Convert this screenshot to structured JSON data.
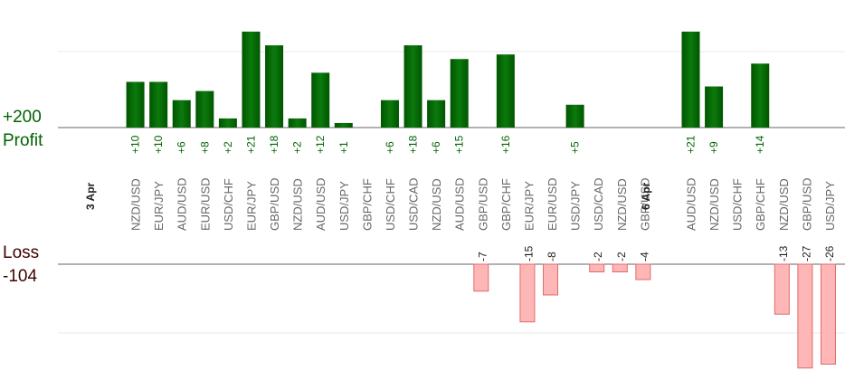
{
  "profit_label": "Profit",
  "profit_total": "+200",
  "loss_label": "Loss",
  "loss_total": "-104",
  "colors": {
    "profit_dark": "#005500",
    "profit_light": "#0c7a0c",
    "loss_fill": "#ffb6b6",
    "loss_stroke": "#e06b6b",
    "profit_text": "#006400",
    "loss_text": "#222222",
    "pair_text": "#666666",
    "date_text": "#222222"
  },
  "chart_data": {
    "type": "bar",
    "title": "",
    "profit_axis_max": 28,
    "loss_axis_max": 24,
    "groups": [
      {
        "date": "3 Apr",
        "trades": [
          {
            "pair": "NZD/USD",
            "profit": 10
          },
          {
            "pair": "EUR/JPY",
            "profit": 10
          },
          {
            "pair": "AUD/USD",
            "profit": 6
          },
          {
            "pair": "EUR/USD",
            "profit": 8
          },
          {
            "pair": "USD/CHF",
            "profit": 2
          },
          {
            "pair": "EUR/JPY",
            "profit": 21
          },
          {
            "pair": "GBP/USD",
            "profit": 18
          },
          {
            "pair": "NZD/USD",
            "profit": 2
          },
          {
            "pair": "AUD/USD",
            "profit": 12
          },
          {
            "pair": "USD/JPY",
            "profit": 1
          },
          {
            "pair": "GBP/CHF",
            "profit": null
          },
          {
            "pair": "USD/CHF",
            "profit": 6
          },
          {
            "pair": "USD/CAD",
            "profit": 18
          },
          {
            "pair": "NZD/USD",
            "profit": 6
          },
          {
            "pair": "AUD/USD",
            "profit": 15
          },
          {
            "pair": "GBP/USD",
            "profit": -7
          },
          {
            "pair": "GBP/CHF",
            "profit": 16
          },
          {
            "pair": "EUR/JPY",
            "profit": -15
          },
          {
            "pair": "EUR/USD",
            "profit": -8
          },
          {
            "pair": "USD/JPY",
            "profit": 5
          },
          {
            "pair": "USD/CAD",
            "profit": -2
          },
          {
            "pair": "NZD/USD",
            "profit": -2
          },
          {
            "pair": "GBP/USD",
            "profit": -4
          }
        ]
      },
      {
        "date": "6 Apr",
        "trades": [
          {
            "pair": "AUD/USD",
            "profit": 21
          },
          {
            "pair": "NZD/USD",
            "profit": 9
          },
          {
            "pair": "USD/CHF",
            "profit": null
          },
          {
            "pair": "GBP/CHF",
            "profit": 14
          },
          {
            "pair": "NZD/USD",
            "profit": -13
          },
          {
            "pair": "GBP/USD",
            "profit": -27
          },
          {
            "pair": "USD/JPY",
            "profit": -26
          }
        ]
      }
    ]
  }
}
